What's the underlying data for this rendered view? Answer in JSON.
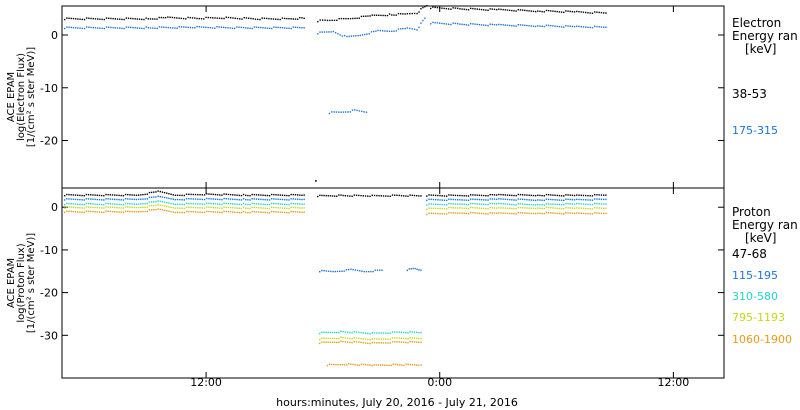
{
  "xlabel": "hours:minutes, July 20, 2016 - July 21, 2016",
  "x_ticks": [
    {
      "hour": 12,
      "label": "12:00"
    },
    {
      "hour": 24,
      "label": "0:00"
    },
    {
      "hour": 36,
      "label": "12:00"
    }
  ],
  "chart_data": [
    {
      "type": "scatter",
      "panel": "electron",
      "ylabel_lines": [
        "ACE EPAM",
        "log(Electron Flux)",
        "[1/(cm² s ster MeV)]"
      ],
      "y_ticks": [
        0,
        -10,
        -20
      ],
      "ylim": [
        -29,
        5.5
      ],
      "xlim": [
        4.6,
        38.6
      ],
      "legend_title_lines": [
        "Electron",
        "Energy ran",
        "[keV]"
      ],
      "series": [
        {
          "name": "38-53",
          "color": "#000000",
          "segments": [
            {
              "x": [
                4.7,
                9.0,
                10.0,
                11.5,
                13.0,
                14.5,
                16.0,
                17.0
              ],
              "y": [
                3.2,
                3.2,
                3.4,
                3.3,
                3.4,
                3.2,
                3.2,
                3.3
              ]
            },
            {
              "x": [
                17.7,
                18.2,
                18.8,
                19.5,
                20.5,
                21.5,
                22.3,
                22.8,
                23.1,
                23.3
              ],
              "y": [
                2.8,
                2.9,
                3.1,
                3.3,
                3.8,
                4.0,
                4.1,
                4.3,
                5.3,
                5.7
              ]
            },
            {
              "x": [
                23.5,
                25.0,
                27.0,
                29.0,
                31.0,
                32.5
              ],
              "y": [
                5.3,
                5.1,
                4.9,
                4.7,
                4.5,
                4.3
              ]
            }
          ]
        },
        {
          "name": "175-315",
          "color": "#1b74d6",
          "segments": [
            {
              "x": [
                4.7,
                9.0,
                11.5,
                14.0,
                17.0
              ],
              "y": [
                1.5,
                1.5,
                1.6,
                1.5,
                1.5
              ]
            },
            {
              "x": [
                17.7,
                18.5,
                19.2,
                20.0,
                20.8,
                21.5,
                22.3,
                22.8,
                23.2
              ],
              "y": [
                0.5,
                0.8,
                -0.3,
                0.2,
                0.9,
                0.9,
                1.4,
                1.2,
                3.3
              ]
            },
            {
              "x": [
                18.3,
                18.9,
                19.6,
                20.2
              ],
              "y": [
                -14.6,
                -14.5,
                -14.2,
                -14.5
              ]
            },
            {
              "x": [
                23.5,
                25.0,
                27.0,
                29.0,
                31.0,
                32.5
              ],
              "y": [
                2.4,
                2.2,
                2.0,
                1.9,
                1.7,
                1.6
              ]
            }
          ]
        }
      ],
      "annotations": [
        {
          "x": 17.6,
          "y": -27.5,
          "color": "#000000"
        }
      ]
    },
    {
      "type": "scatter",
      "panel": "proton",
      "ylabel_lines": [
        "ACE EPAM",
        "log(Proton Flux)",
        "[1/(cm² s ster MeV)]"
      ],
      "y_ticks": [
        0,
        -10,
        -20,
        -30
      ],
      "ylim": [
        -40,
        4.5
      ],
      "xlim": [
        4.6,
        38.6
      ],
      "legend_title_lines": [
        "Proton",
        "Energy ran",
        "[keV]"
      ],
      "series": [
        {
          "name": "47-68",
          "color": "#000000",
          "segments": [
            {
              "x": [
                4.7,
                8.5,
                9.5,
                10.5,
                12.0,
                14.0,
                17.0
              ],
              "y": [
                3.0,
                3.0,
                3.8,
                3.0,
                3.2,
                3.0,
                3.0
              ]
            },
            {
              "x": [
                17.7,
                19.0,
                20.5,
                22.0,
                23.0
              ],
              "y": [
                2.8,
                2.9,
                2.8,
                2.9,
                2.8
              ]
            },
            {
              "x": [
                23.3,
                25.0,
                27.0,
                29.0,
                31.0,
                32.5
              ],
              "y": [
                2.9,
                2.9,
                3.0,
                3.0,
                2.9,
                3.0
              ]
            }
          ]
        },
        {
          "name": "115-195",
          "color": "#1b74d6",
          "segments": [
            {
              "x": [
                4.7,
                8.5,
                9.5,
                10.5,
                12.0,
                14.0,
                17.0
              ],
              "y": [
                2.0,
                2.0,
                2.6,
                2.0,
                2.1,
                2.0,
                2.0
              ]
            },
            {
              "x": [
                17.8,
                18.6,
                19.4,
                20.2,
                21.0
              ],
              "y": [
                -14.8,
                -14.9,
                -14.5,
                -14.9,
                -14.6
              ]
            },
            {
              "x": [
                22.3,
                22.7,
                23.0
              ],
              "y": [
                -14.5,
                -14.2,
                -14.6
              ]
            },
            {
              "x": [
                23.3,
                25.0,
                27.0,
                29.0,
                31.0,
                32.5
              ],
              "y": [
                1.9,
                1.9,
                2.0,
                1.9,
                1.9,
                2.0
              ]
            }
          ]
        },
        {
          "name": "310-580",
          "color": "#22d4cf",
          "segments": [
            {
              "x": [
                4.7,
                8.5,
                9.5,
                10.5,
                12.0,
                14.0,
                17.0
              ],
              "y": [
                0.9,
                0.9,
                1.5,
                0.9,
                1.0,
                0.9,
                0.9
              ]
            },
            {
              "x": [
                17.8,
                19.0,
                20.5,
                22.0,
                23.0
              ],
              "y": [
                -29.3,
                -29.0,
                -29.4,
                -29.1,
                -29.2
              ]
            },
            {
              "x": [
                23.3,
                25.0,
                27.0,
                29.0,
                31.0,
                32.5
              ],
              "y": [
                0.8,
                0.9,
                0.9,
                0.8,
                0.9,
                0.9
              ]
            }
          ]
        },
        {
          "name": "795-1193",
          "color": "#c8d619",
          "segments": [
            {
              "x": [
                4.7,
                8.5,
                9.5,
                10.5,
                12.0,
                14.0,
                17.0
              ],
              "y": [
                0.1,
                0.1,
                0.6,
                0.0,
                0.1,
                0.0,
                0.0
              ]
            },
            {
              "x": [
                17.8,
                19.0,
                20.5,
                22.0,
                23.0
              ],
              "y": [
                -30.7,
                -30.4,
                -30.8,
                -30.5,
                -30.6
              ]
            },
            {
              "x": [
                23.3,
                25.0,
                27.0,
                29.0,
                31.0,
                32.5
              ],
              "y": [
                -0.2,
                0.0,
                -0.1,
                0.0,
                -0.1,
                -0.1
              ]
            }
          ]
        },
        {
          "name": "1060-1900",
          "color": "#e89a1c",
          "segments": [
            {
              "x": [
                4.7,
                8.5,
                9.5,
                10.5,
                12.0,
                14.0,
                17.0
              ],
              "y": [
                -0.9,
                -0.9,
                -0.4,
                -1.0,
                -0.9,
                -1.0,
                -1.0
              ]
            },
            {
              "x": [
                17.8,
                19.0,
                20.5,
                22.0,
                23.0
              ],
              "y": [
                -31.6,
                -31.3,
                -31.7,
                -31.4,
                -31.5
              ]
            },
            {
              "x": [
                18.2,
                19.4,
                20.6,
                21.8,
                23.0
              ],
              "y": [
                -36.8,
                -36.6,
                -36.9,
                -36.7,
                -36.8
              ]
            },
            {
              "x": [
                23.3,
                25.0,
                27.0,
                29.0,
                31.0,
                32.5
              ],
              "y": [
                -1.4,
                -1.2,
                -1.3,
                -1.2,
                -1.3,
                -1.3
              ]
            }
          ]
        }
      ],
      "annotations": []
    }
  ]
}
